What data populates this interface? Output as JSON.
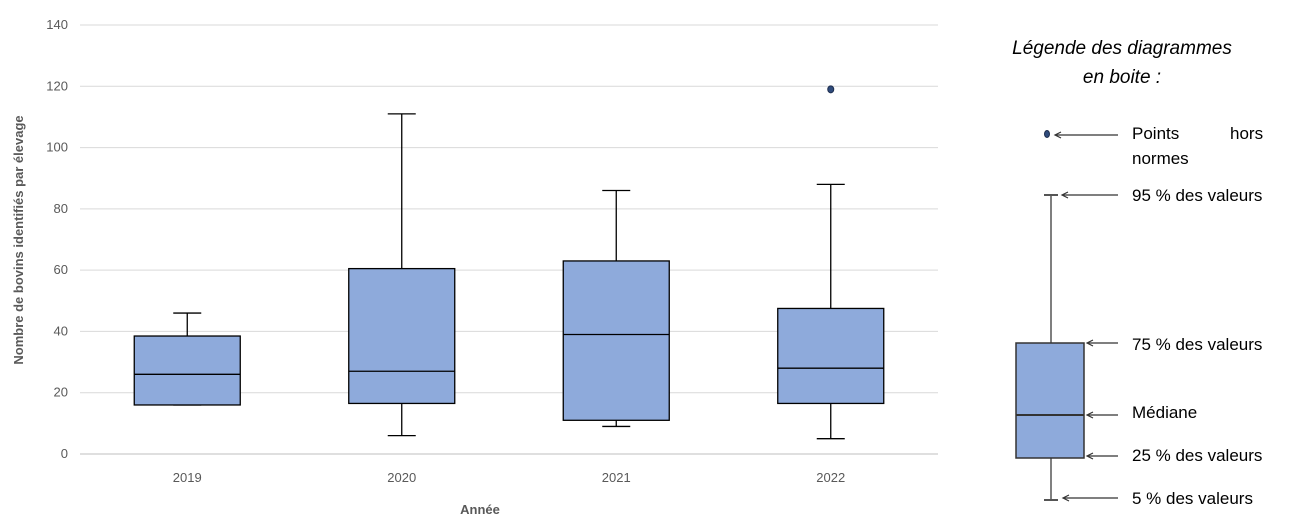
{
  "chart_data": {
    "type": "boxplot",
    "xlabel": "Année",
    "ylabel": "Nombre de bovins identifiés par élevage",
    "ylim": [
      0,
      140
    ],
    "yticks": [
      0,
      20,
      40,
      60,
      80,
      100,
      120,
      140
    ],
    "grid": true,
    "categories": [
      "2019",
      "2020",
      "2021",
      "2022"
    ],
    "boxes": [
      {
        "category": "2019",
        "whisker_low": 16,
        "q1": 16,
        "median": 26,
        "q3": 38.5,
        "whisker_high": 46,
        "outliers": []
      },
      {
        "category": "2020",
        "whisker_low": 6,
        "q1": 16.5,
        "median": 27,
        "q3": 60.5,
        "whisker_high": 111,
        "outliers": []
      },
      {
        "category": "2021",
        "whisker_low": 9,
        "q1": 11,
        "median": 39,
        "q3": 63,
        "whisker_high": 86,
        "outliers": []
      },
      {
        "category": "2022",
        "whisker_low": 5,
        "q1": 16.5,
        "median": 28,
        "q3": 47.5,
        "whisker_high": 88,
        "outliers": [
          119
        ]
      }
    ],
    "colors": {
      "box_fill": "#8eaadb",
      "box_stroke": "#000000",
      "grid": "#d9d9d9",
      "outlier": "#2f4b7c"
    }
  },
  "legend": {
    "title_line1": "Légende des diagrammes",
    "title_line2": "en boite :",
    "outlier_label_word1": "Points",
    "outlier_label_word2": "hors",
    "outlier_label_line2": "normes",
    "p95_label": "95 % des valeurs",
    "p75_label": "75 % des valeurs",
    "median_label": "Médiane",
    "p25_label": "25 % des valeurs",
    "p5_label": "5 % des valeurs"
  }
}
